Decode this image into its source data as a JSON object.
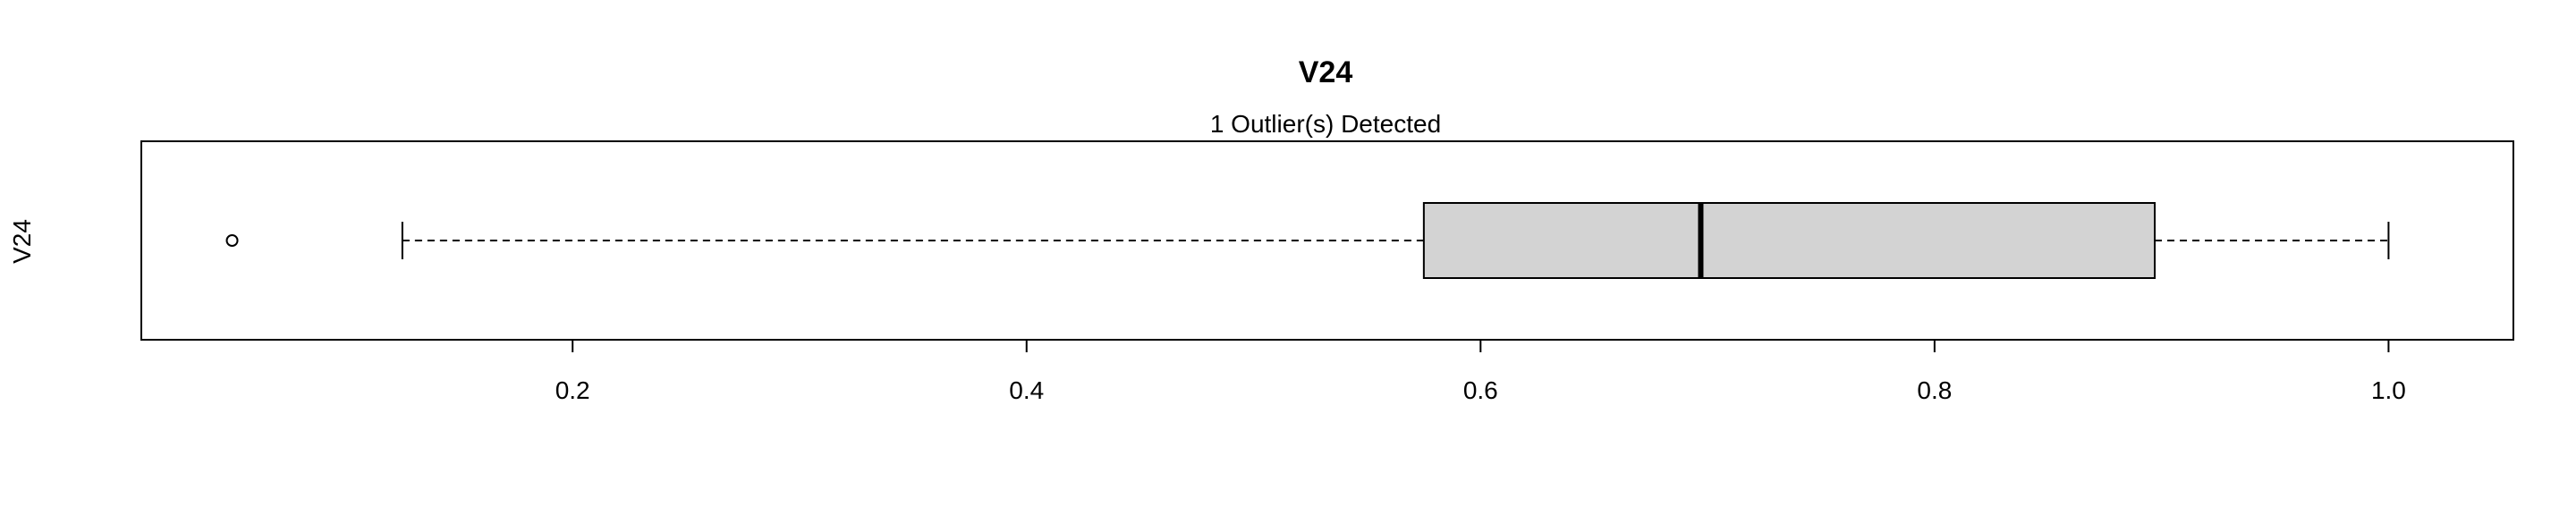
{
  "chart_data": {
    "type": "boxplot",
    "orientation": "horizontal",
    "title": "V24",
    "subtitle": "1 Outlier(s) Detected",
    "ylabel": "V24",
    "xlabel": "",
    "xlim": [
      0.01,
      1.055
    ],
    "x_ticks": [
      0.2,
      0.4,
      0.6,
      0.8,
      1.0
    ],
    "x_tick_labels": [
      "0.2",
      "0.4",
      "0.6",
      "0.8",
      "1.0"
    ],
    "series": [
      {
        "whisker_low": 0.125,
        "q1": 0.575,
        "median": 0.697,
        "q3": 0.897,
        "whisker_high": 1.0,
        "outliers": [
          0.05
        ]
      }
    ],
    "box_fill": "#d3d3d3",
    "grid": false
  }
}
